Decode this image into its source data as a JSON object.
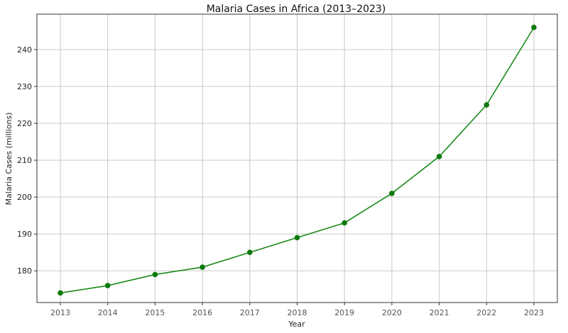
{
  "chart_data": {
    "type": "line",
    "title": "Malaria Cases in Africa (2013–2023)",
    "xlabel": "Year",
    "ylabel": "Malaria Cases (millions)",
    "x": [
      "2013",
      "2014",
      "2015",
      "2016",
      "2017",
      "2018",
      "2019",
      "2020",
      "2021",
      "2022",
      "2023"
    ],
    "series": [
      {
        "values": [
          174,
          176,
          179,
          181,
          185,
          189,
          193,
          201,
          211,
          225,
          246
        ]
      }
    ],
    "ylim": [
      171.4,
      249.6
    ],
    "yticks": [
      180,
      190,
      200,
      210,
      220,
      230,
      240
    ],
    "grid": true,
    "legend": "none",
    "colors": {
      "line": "#1a8a1a",
      "marker": "#0a7a0a",
      "grid": "#c8c8c8",
      "axis": "#333333",
      "x_tick_text": "#555555",
      "y_tick_text": "#222222",
      "xlabel_text": "#a0a0a0"
    },
    "marker": "circle"
  }
}
